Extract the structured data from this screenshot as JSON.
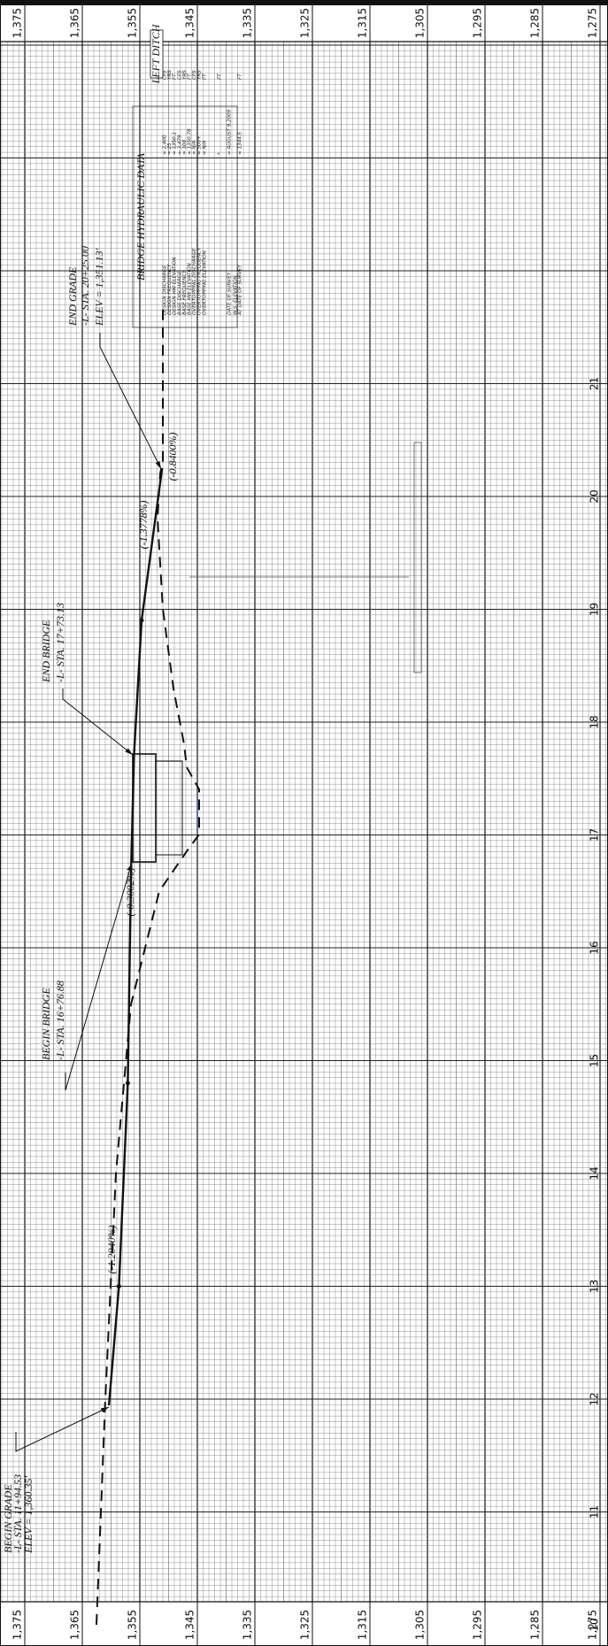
{
  "elevation_labels": [
    "1,375",
    "1,365",
    "1,355",
    "1,345",
    "1,335",
    "1,325",
    "1,315",
    "1,305",
    "1,295",
    "1,285",
    "1,275"
  ],
  "station_labels": [
    "10",
    "11",
    "12",
    "13",
    "14",
    "15",
    "16",
    "17",
    "18",
    "19",
    "20",
    "21"
  ],
  "begin_grade": {
    "title": "BEGIN GRADE",
    "station": "-L- STA. 11+94.53",
    "elevation": "ELEV = 1,360.35'"
  },
  "begin_bridge": {
    "title": "BEGIN BRIDGE",
    "station": "-L- STA. 16+76.88"
  },
  "end_bridge": {
    "title": "END BRIDGE",
    "station": "-L- STA. 17+73.13"
  },
  "end_grade": {
    "title": "END GRADE",
    "station": "-L- STA. 20+25.00",
    "elevation": "ELEV = 1,351.13'"
  },
  "left_ditch": "LEFT DITCH",
  "grades": [
    "(-1.2040%)",
    "(-0.3002%)",
    "(-1.3778%)",
    "(-0.8400%)"
  ],
  "hydraulic_data": {
    "title": "BRIDGE HYDRAULIC DATA",
    "rows": [
      {
        "label": "DESIGN DISCHARGE",
        "value": "= 2,400",
        "unit": "CFS"
      },
      {
        "label": "DESIGN FREQUENCY",
        "value": "= 25",
        "unit": "YRS"
      },
      {
        "label": "DESIGN HW ELEVATION",
        "value": "= 1350.1",
        "unit": "FT"
      },
      {
        "label": "BASE DISCHARGE",
        "value": "= 3,479",
        "unit": "CFS"
      },
      {
        "label": "BASE FREQUENCY",
        "value": "= 100",
        "unit": "YRS"
      },
      {
        "label": "BASE HW ELEVATION",
        "value": "= 1350.78",
        "unit": "FT"
      },
      {
        "label": "OVERTOPPING DISCHARGE",
        "value": "= N/A",
        "unit": "CFS"
      },
      {
        "label": "OVERTOPPING FREQUENCY",
        "value": "= 500+",
        "unit": "YRS"
      },
      {
        "label": "OVERTOPPING ELEVATION",
        "value": "= N/A",
        "unit": "FT"
      },
      {
        "value": "*",
        "unit": "FT"
      },
      {
        "label": "DATE OF SURVEY",
        "value": "= AUGUST 9,2009"
      },
      {
        "label": "W.S. ELEVATION",
        "label2": "AT DATE OF SURVEY",
        "value": "= 1344.5",
        "unit": "FT"
      }
    ]
  }
}
